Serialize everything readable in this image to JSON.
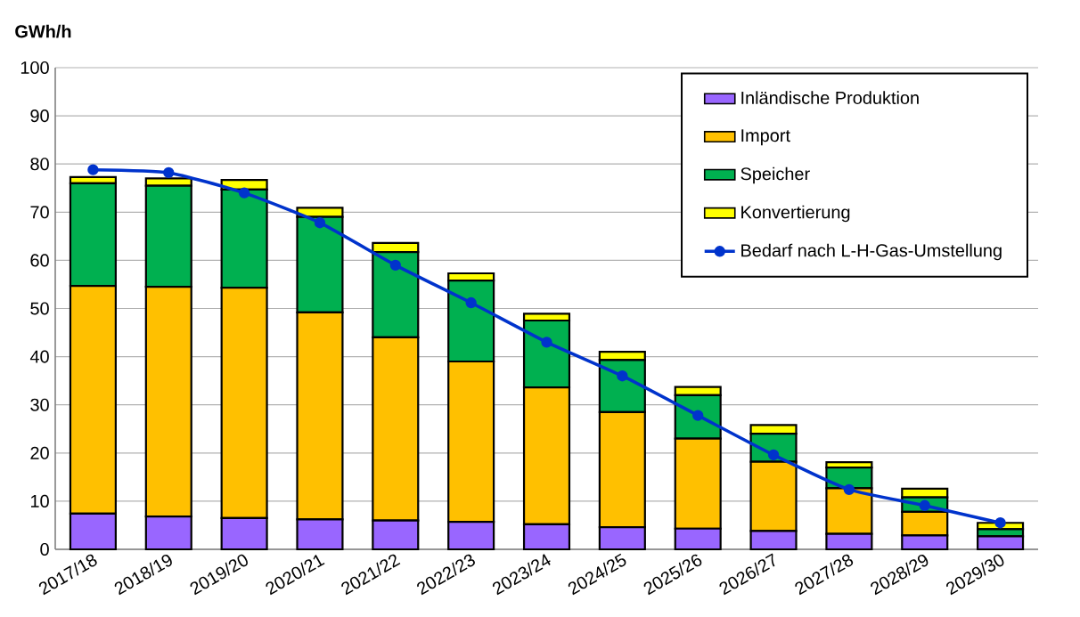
{
  "chart_data": {
    "type": "bar",
    "stacked": true,
    "ylabel": "GWh/h",
    "categories": [
      "2017/18",
      "2018/19",
      "2019/20",
      "2020/21",
      "2021/22",
      "2022/23",
      "2023/24",
      "2024/25",
      "2025/26",
      "2026/27",
      "2027/28",
      "2028/29",
      "2029/30"
    ],
    "series": [
      {
        "name": "Inländische Produktion",
        "color": "#9966ff",
        "values": [
          7.4,
          6.8,
          6.5,
          6.2,
          6,
          5.7,
          5.2,
          4.6,
          4.3,
          3.8,
          3.2,
          2.9,
          2.7
        ]
      },
      {
        "name": "Import",
        "color": "#ffc000",
        "values": [
          47.3,
          47.7,
          47.8,
          43,
          38,
          33.3,
          28.4,
          23.9,
          18.7,
          14.4,
          9.5,
          4.9,
          0
        ]
      },
      {
        "name": "Speicher",
        "color": "#00b050",
        "values": [
          21.3,
          21,
          20.4,
          19.8,
          17.7,
          16.8,
          13.9,
          10.8,
          9,
          5.8,
          4.3,
          3,
          1.5
        ]
      },
      {
        "name": "Konvertierung",
        "color": "#ffff00",
        "values": [
          1.3,
          1.5,
          2,
          1.9,
          1.9,
          1.5,
          1.4,
          1.7,
          1.7,
          1.8,
          1.1,
          1.8,
          1.3
        ]
      },
      {
        "name": "Bedarf nach L-H-Gas-Umstellung",
        "type": "line",
        "color": "#0033cc",
        "marker": "circle",
        "values": [
          78.8,
          78.2,
          74,
          67.8,
          59,
          51.2,
          43,
          36,
          27.8,
          19.6,
          12.4,
          9.1,
          5.5
        ]
      }
    ],
    "ylim": [
      0,
      100
    ],
    "yticks": [
      0,
      10,
      20,
      30,
      40,
      50,
      60,
      70,
      80,
      90,
      100
    ],
    "grid": "y",
    "legend": "top right"
  }
}
